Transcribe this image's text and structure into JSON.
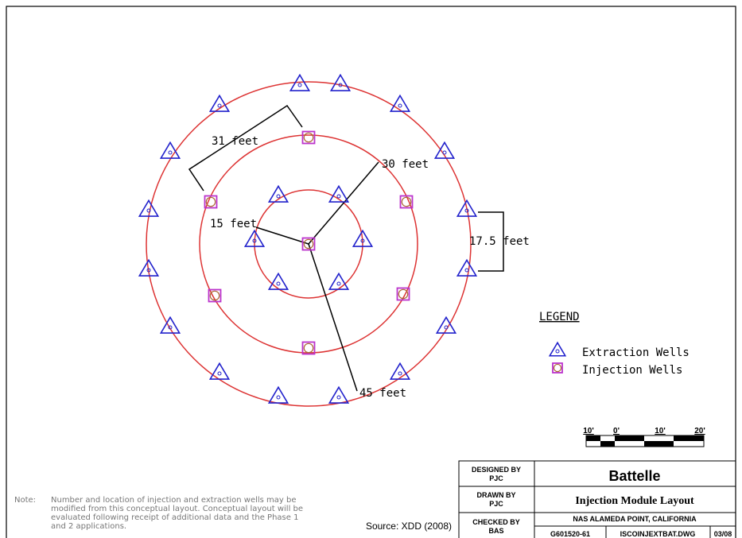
{
  "dimensions": {
    "d31": "31 feet",
    "d30": "30 feet",
    "d15": "15 feet",
    "d17": "17.5 feet",
    "d45": "45 feet"
  },
  "legend": {
    "title": "LEGEND",
    "items": [
      "Extraction Wells",
      "Injection Wells"
    ]
  },
  "scale": [
    "10'",
    "0'",
    "10'",
    "20'"
  ],
  "note": {
    "label": "Note:",
    "lines": [
      "Number and location of injection and extraction wells may be",
      "modified from this conceptual layout.  Conceptual layout will be",
      "evaluated following receipt of additional data and the Phase 1",
      "and 2 applications."
    ]
  },
  "source": "Source:  XDD (2008)",
  "title_block": {
    "designed_label": "DESIGNED BY",
    "designed": "PJC",
    "drawn_label": "DRAWN BY",
    "drawn": "PJC",
    "checked_label": "CHECKED BY",
    "checked": "BAS",
    "company": "Battelle",
    "title": "Injection Module Layout",
    "location": "NAS ALAMEDA POINT, CALIFORNIA",
    "date": "03/08",
    "drawing_no": "G601520-61",
    "file": "ISCOINJEXTBAT.DWG"
  }
}
